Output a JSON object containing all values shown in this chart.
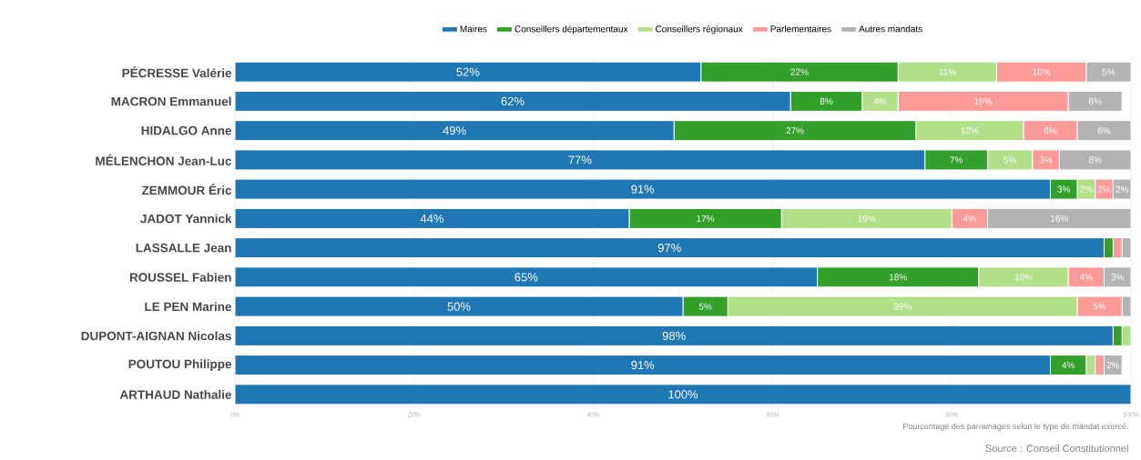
{
  "chart_data": {
    "type": "bar",
    "orientation": "horizontal",
    "stacked": true,
    "categories": [
      "PÉCRESSE Valérie",
      "MACRON Emmanuel",
      "HIDALGO Anne",
      "MÉLENCHON Jean-Luc",
      "ZEMMOUR Éric",
      "JADOT Yannick",
      "LASSALLE Jean",
      "ROUSSEL Fabien",
      "LE PEN Marine",
      "DUPONT-AIGNAN Nicolas",
      "POUTOU Philippe",
      "ARTHAUD Nathalie"
    ],
    "series": [
      {
        "name": "Maires",
        "color": "#1f77b4",
        "values": [
          52,
          62,
          49,
          77,
          91,
          44,
          97,
          65,
          50,
          98,
          91,
          100
        ],
        "value_labels": [
          "52%",
          "62%",
          "49%",
          "77%",
          "91%",
          "44%",
          "97%",
          "65%",
          "50%",
          "98%",
          "91%",
          "100%"
        ]
      },
      {
        "name": "Conseillers départementaux",
        "color": "#33a02c",
        "values": [
          22,
          8,
          27,
          7,
          3,
          17,
          1,
          18,
          5,
          1,
          4,
          0
        ],
        "value_labels": [
          "22%",
          "8%",
          "27%",
          "7%",
          "3%",
          "17%",
          null,
          "18%",
          "5%",
          null,
          "4%",
          null
        ]
      },
      {
        "name": "Conseillers régionaux",
        "color": "#b2df8a",
        "values": [
          11,
          4,
          12,
          5,
          2,
          19,
          0,
          10,
          39,
          1,
          1,
          0
        ],
        "value_labels": [
          "11%",
          "4%",
          "12%",
          "5%",
          "2%",
          "19%",
          null,
          "10%",
          "39%",
          null,
          null,
          null
        ]
      },
      {
        "name": "Parlementaires",
        "color": "#fb9a99",
        "values": [
          10,
          19,
          6,
          3,
          2,
          4,
          1,
          4,
          5,
          0,
          1,
          0
        ],
        "value_labels": [
          "10%",
          "19%",
          "6%",
          "3%",
          "2%",
          "4%",
          null,
          "4%",
          "5%",
          null,
          null,
          null
        ]
      },
      {
        "name": "Autres mandats",
        "color": "#b3b3b3",
        "values": [
          5,
          6,
          6,
          8,
          2,
          16,
          1,
          3,
          1,
          0,
          2,
          0
        ],
        "value_labels": [
          "5%",
          "6%",
          "6%",
          "8%",
          "2%",
          "16%",
          null,
          "3%",
          null,
          null,
          "2%",
          null
        ]
      }
    ],
    "xlim": [
      0,
      100
    ],
    "xticks": [
      {
        "value": 0,
        "label": "0%"
      },
      {
        "value": 20,
        "label": "20%"
      },
      {
        "value": 40,
        "label": "40%"
      },
      {
        "value": 60,
        "label": "60%"
      },
      {
        "value": 80,
        "label": "80%"
      },
      {
        "value": 100,
        "label": "100%"
      }
    ],
    "grid": "x",
    "legend": "top",
    "annotations": [
      "Pourcentage des parrainages selon le type de mandat exercé.",
      "Source : Conseil Constitutionnel"
    ]
  }
}
